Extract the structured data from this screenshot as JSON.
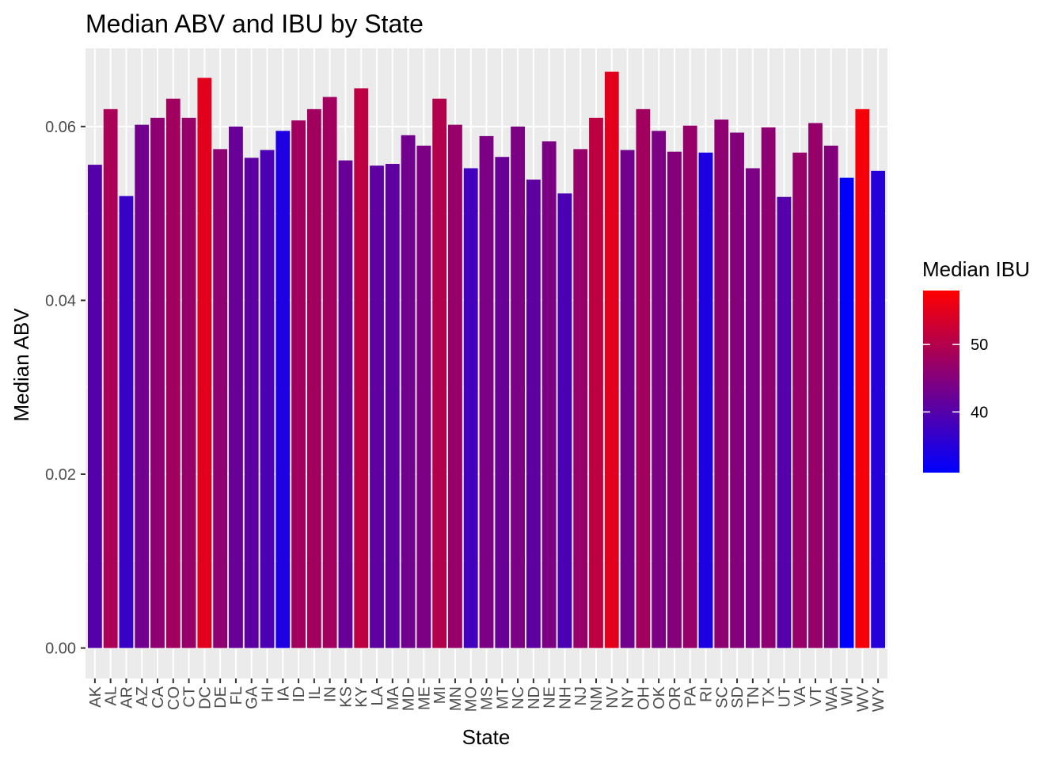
{
  "chart_data": {
    "type": "bar",
    "title": "Median ABV and IBU by State",
    "xlabel": "State",
    "ylabel": "Median ABV",
    "ylim": [
      -0.0035,
      0.069
    ],
    "yticks": [
      0.0,
      0.02,
      0.04,
      0.06
    ],
    "ytick_labels": [
      "0.00",
      "0.02",
      "0.04",
      "0.06"
    ],
    "grid": true,
    "categories": [
      "AK",
      "AL",
      "AR",
      "AZ",
      "CA",
      "CO",
      "CT",
      "DC",
      "DE",
      "FL",
      "GA",
      "HI",
      "IA",
      "ID",
      "IL",
      "IN",
      "KS",
      "KY",
      "LA",
      "MA",
      "MD",
      "ME",
      "MI",
      "MN",
      "MO",
      "MS",
      "MT",
      "NC",
      "ND",
      "NE",
      "NH",
      "NJ",
      "NM",
      "NV",
      "NY",
      "OH",
      "OK",
      "OR",
      "PA",
      "RI",
      "SC",
      "SD",
      "TN",
      "TX",
      "UT",
      "VA",
      "VT",
      "WA",
      "WI",
      "WV",
      "WY"
    ],
    "values": [
      0.0556,
      0.062,
      0.052,
      0.0602,
      0.061,
      0.0632,
      0.061,
      0.0656,
      0.0574,
      0.06,
      0.0564,
      0.0573,
      0.0595,
      0.0607,
      0.062,
      0.0634,
      0.0561,
      0.0644,
      0.0555,
      0.0557,
      0.059,
      0.0578,
      0.0632,
      0.0602,
      0.0552,
      0.0589,
      0.0565,
      0.06,
      0.0539,
      0.0583,
      0.0523,
      0.0574,
      0.061,
      0.0663,
      0.0573,
      0.062,
      0.0595,
      0.0571,
      0.0601,
      0.057,
      0.0608,
      0.0593,
      0.0552,
      0.0599,
      0.0519,
      0.057,
      0.0604,
      0.0578,
      0.0541,
      0.062,
      0.0549
    ],
    "fill_values": [
      40,
      49,
      37,
      43,
      46,
      48,
      47,
      55,
      46,
      42,
      41,
      39,
      34,
      48,
      48,
      48,
      42,
      51,
      41,
      41,
      43,
      44,
      50,
      47,
      38,
      44,
      42,
      44,
      41,
      44,
      39,
      47,
      51,
      55,
      43,
      48,
      44,
      45,
      47,
      34,
      46,
      45,
      44,
      46,
      40,
      47,
      47,
      45,
      31,
      57,
      35
    ],
    "legend": {
      "title": "Median IBU",
      "placement": "right",
      "min": 31,
      "max": 58,
      "ticks": [
        40,
        50
      ],
      "tick_labels": [
        "40",
        "50"
      ],
      "low_color": "#0000ff",
      "high_color": "#ff0000"
    },
    "panel_color": "#ebebeb",
    "grid_color": "#ffffff"
  }
}
